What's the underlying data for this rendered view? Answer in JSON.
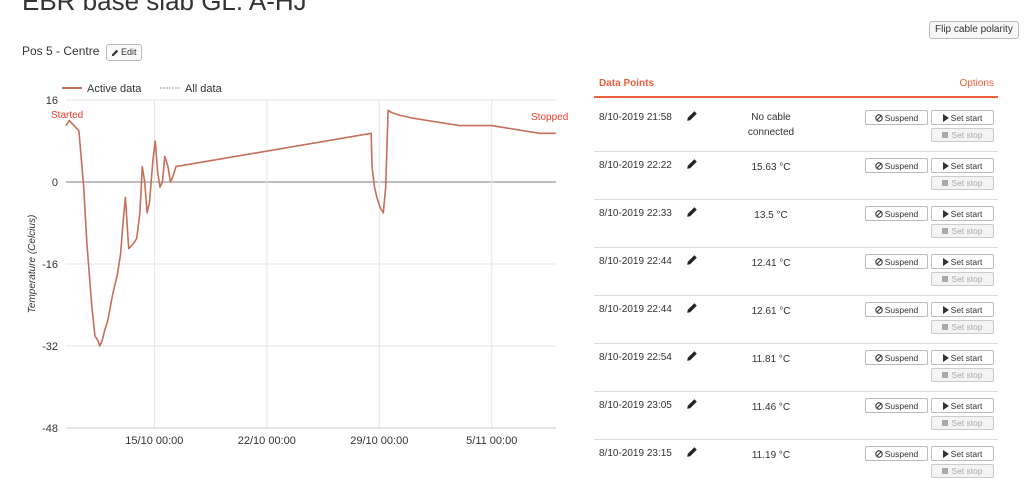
{
  "header": {
    "title": "EBR base slab GL. A-HJ",
    "flip_label": "Flip cable polarity"
  },
  "position": {
    "label": "Pos 5 - Centre",
    "edit_label": "Edit"
  },
  "legend": {
    "active": "Active data",
    "all": "All data"
  },
  "chart_data": {
    "type": "line",
    "title": "",
    "xlabel": "",
    "ylabel": "Temperature (Celcius)",
    "ylim": [
      -48,
      16
    ],
    "yticks": [
      16,
      0,
      -16,
      -32,
      -48
    ],
    "x_range_days": [
      0,
      30.5
    ],
    "xticks": [
      {
        "day": 5.5,
        "label": "15/10 00:00"
      },
      {
        "day": 12.5,
        "label": "22/10 00:00"
      },
      {
        "day": 19.5,
        "label": "29/10 00:00"
      },
      {
        "day": 26.5,
        "label": "5/11 00:00"
      }
    ],
    "annotations": {
      "start": "Started",
      "stop": "Stopped"
    },
    "colors": {
      "line": "#c6705a",
      "zero": "#999999",
      "grid": "#e5e5e5",
      "annotation": "#e8402c"
    },
    "series": [
      {
        "name": "Active data",
        "x": [
          0,
          0.2,
          0.5,
          0.8,
          1.1,
          1.3,
          1.6,
          1.8,
          2.0,
          2.1,
          2.25,
          2.4,
          2.6,
          2.9,
          3.2,
          3.4,
          3.55,
          3.7,
          3.9,
          4.2,
          4.4,
          4.6,
          4.75,
          4.9,
          5.05,
          5.2,
          5.4,
          5.55,
          5.7,
          5.85,
          6.0,
          6.15,
          6.35,
          6.5,
          6.65,
          6.85,
          19.0,
          19.05,
          19.2,
          19.35,
          19.55,
          19.75,
          19.9,
          20.05,
          20.3,
          20.8,
          21.5,
          22.5,
          23.5,
          24.5,
          25.5,
          26.5,
          27.5,
          28.5,
          29.5,
          30.5
        ],
        "y": [
          11,
          12,
          11,
          10,
          -1,
          -12,
          -24,
          -30,
          -31,
          -32,
          -31,
          -29,
          -27,
          -22,
          -18,
          -14,
          -8,
          -3,
          -13,
          -12,
          -11,
          -6,
          3,
          0,
          -6,
          -4,
          4,
          8,
          2,
          -1,
          0,
          5,
          3,
          0,
          1,
          3,
          9.5,
          3,
          -1,
          -3,
          -5,
          -6,
          -1,
          14,
          13.5,
          13,
          12.5,
          12,
          11.5,
          11,
          11,
          11,
          10.5,
          10,
          9.5,
          9.5
        ]
      }
    ]
  },
  "data_points": {
    "title": "Data Points",
    "options": "Options",
    "suspend_label": "Suspend",
    "set_start_label": "Set start",
    "set_stop_label": "Set stop",
    "rows": [
      {
        "date": "8/10-2019 21:58",
        "value": "No cable connected"
      },
      {
        "date": "8/10-2019 22:22",
        "value": "15.63 °C"
      },
      {
        "date": "8/10-2019 22:33",
        "value": "13.5 °C"
      },
      {
        "date": "8/10-2019 22:44",
        "value": "12.41 °C"
      },
      {
        "date": "8/10-2019 22:44",
        "value": "12.61 °C"
      },
      {
        "date": "8/10-2019 22:54",
        "value": "11.81 °C"
      },
      {
        "date": "8/10-2019 23:05",
        "value": "11.46 °C"
      },
      {
        "date": "8/10-2019 23:15",
        "value": "11.19 °C"
      }
    ]
  }
}
